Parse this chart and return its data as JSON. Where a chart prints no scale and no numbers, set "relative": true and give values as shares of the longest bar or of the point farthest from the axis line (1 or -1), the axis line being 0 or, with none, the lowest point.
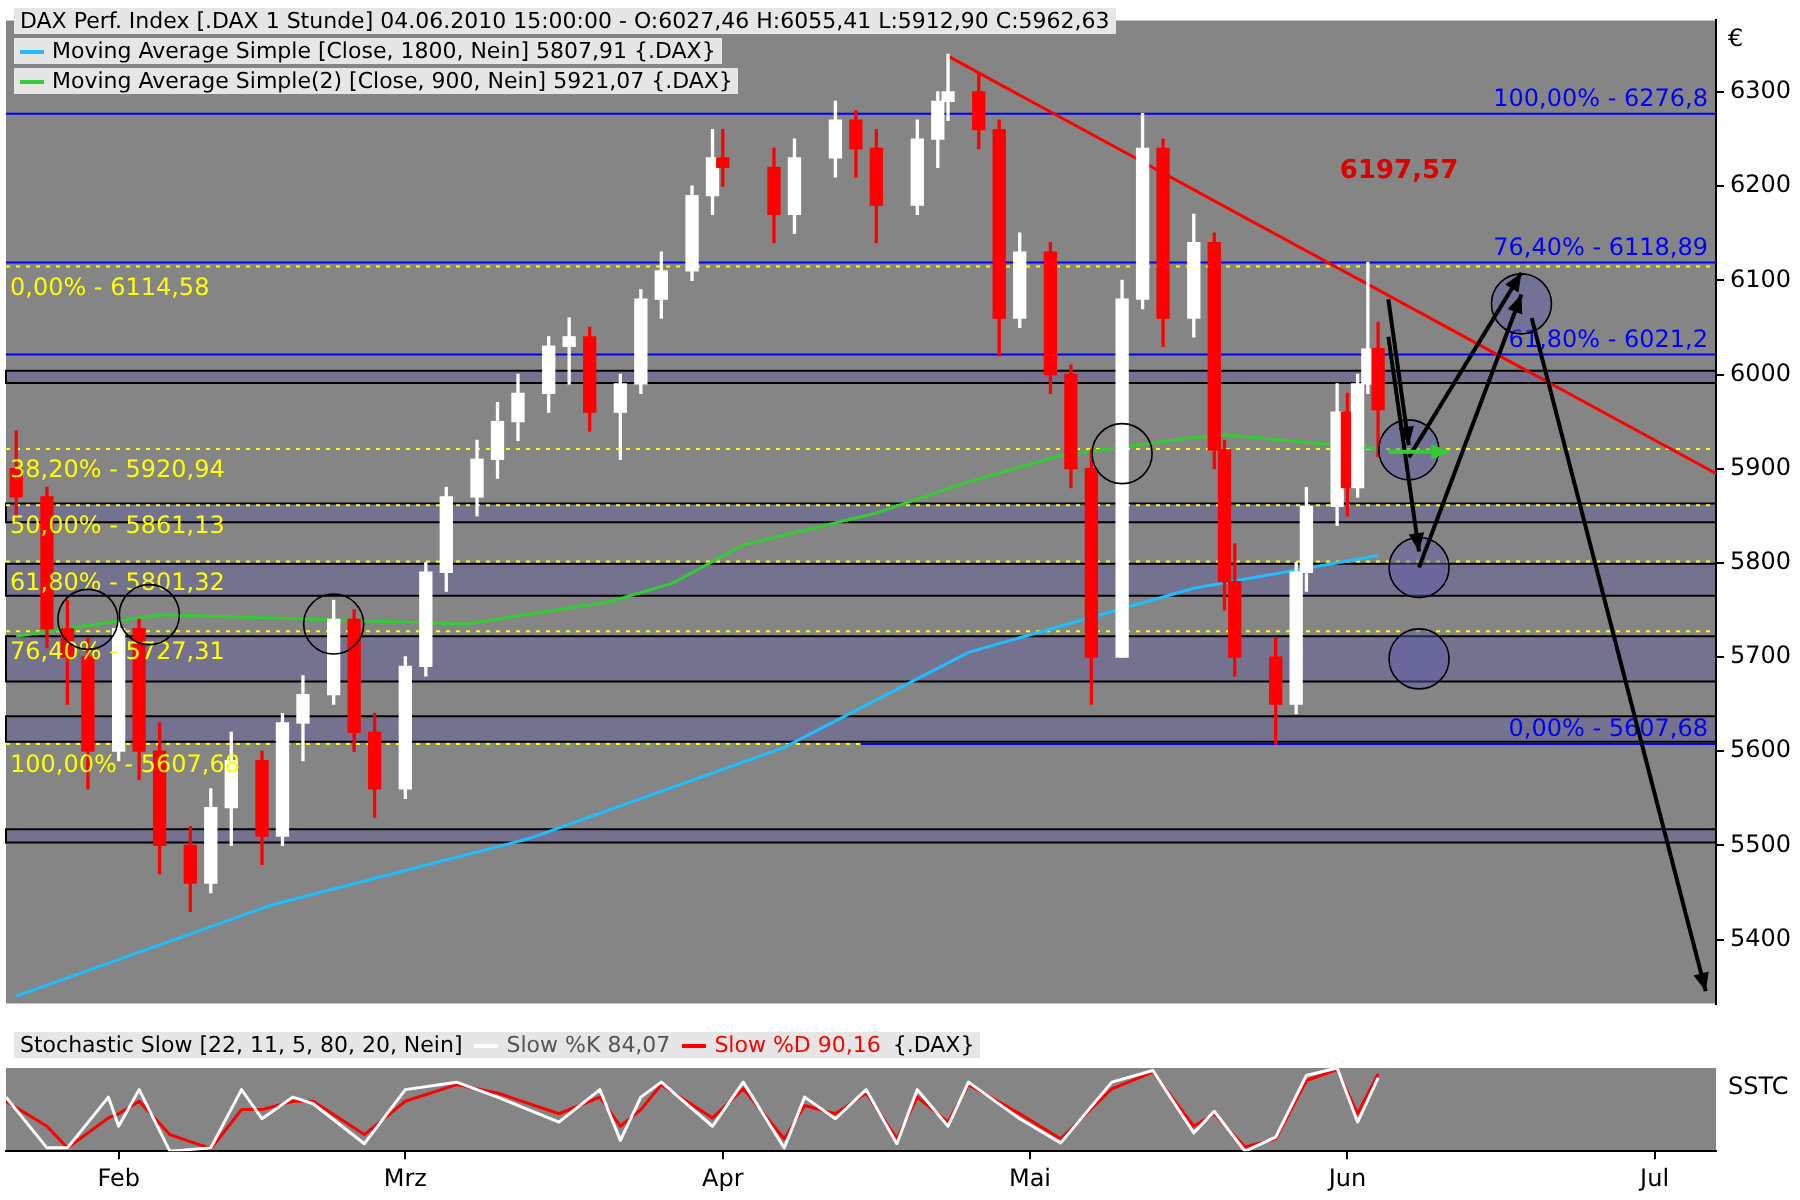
{
  "chart_data": [
    {
      "type": "candlestick",
      "title": "DAX Perf. Index [.DAX  1 Stunde] 04.06.2010 15:00:00 - O:6027,46 H:6055,41 L:5912,90 C:5962,63",
      "ylabel": "€",
      "legend": "top left",
      "grid": false,
      "tick_labels": "y",
      "xlim": [
        "2010-01-21",
        "2010-07-07"
      ],
      "ylim": [
        5332,
        6376
      ],
      "yticks": [
        5400,
        5500,
        5600,
        5700,
        5800,
        5900,
        6000,
        6100,
        6200,
        6300
      ],
      "x": [
        "2010-01-22",
        "2010-01-25",
        "2010-01-27",
        "2010-01-29",
        "2010-02-01",
        "2010-02-03",
        "2010-02-05",
        "2010-02-08",
        "2010-02-10",
        "2010-02-12",
        "2010-02-15",
        "2010-02-17",
        "2010-02-19",
        "2010-02-22",
        "2010-02-24",
        "2010-02-26",
        "2010-03-01",
        "2010-03-03",
        "2010-03-05",
        "2010-03-08",
        "2010-03-10",
        "2010-03-12",
        "2010-03-15",
        "2010-03-17",
        "2010-03-19",
        "2010-03-22",
        "2010-03-24",
        "2010-03-26",
        "2010-03-29",
        "2010-03-31",
        "2010-04-01",
        "2010-04-06",
        "2010-04-08",
        "2010-04-12",
        "2010-04-14",
        "2010-04-16",
        "2010-04-20",
        "2010-04-22",
        "2010-04-23",
        "2010-04-26",
        "2010-04-28",
        "2010-04-30",
        "2010-05-03",
        "2010-05-05",
        "2010-05-07",
        "2010-05-10",
        "2010-05-12",
        "2010-05-14",
        "2010-05-17",
        "2010-05-19",
        "2010-05-20",
        "2010-05-21",
        "2010-05-25",
        "2010-05-27",
        "2010-05-28",
        "2010-05-31",
        "2010-06-01",
        "2010-06-02",
        "2010-06-03",
        "2010-06-04"
      ],
      "ohlc": [
        [
          5900,
          5940,
          5850,
          5870
        ],
        [
          5870,
          5880,
          5710,
          5730
        ],
        [
          5730,
          5760,
          5650,
          5700
        ],
        [
          5700,
          5720,
          5560,
          5600
        ],
        [
          5600,
          5740,
          5590,
          5730
        ],
        [
          5730,
          5740,
          5570,
          5600
        ],
        [
          5600,
          5630,
          5470,
          5500
        ],
        [
          5500,
          5520,
          5430,
          5460
        ],
        [
          5460,
          5560,
          5450,
          5540
        ],
        [
          5540,
          5620,
          5500,
          5590
        ],
        [
          5590,
          5600,
          5480,
          5510
        ],
        [
          5510,
          5640,
          5500,
          5630
        ],
        [
          5630,
          5680,
          5590,
          5660
        ],
        [
          5660,
          5760,
          5650,
          5740
        ],
        [
          5740,
          5750,
          5600,
          5620
        ],
        [
          5620,
          5640,
          5530,
          5560
        ],
        [
          5560,
          5700,
          5550,
          5690
        ],
        [
          5690,
          5800,
          5680,
          5790
        ],
        [
          5790,
          5880,
          5770,
          5870
        ],
        [
          5870,
          5930,
          5850,
          5910
        ],
        [
          5910,
          5970,
          5890,
          5950
        ],
        [
          5950,
          6000,
          5930,
          5980
        ],
        [
          5980,
          6040,
          5960,
          6030
        ],
        [
          6030,
          6060,
          5990,
          6040
        ],
        [
          6040,
          6050,
          5940,
          5960
        ],
        [
          5960,
          6000,
          5910,
          5990
        ],
        [
          5990,
          6090,
          5980,
          6080
        ],
        [
          6080,
          6130,
          6060,
          6110
        ],
        [
          6110,
          6200,
          6100,
          6190
        ],
        [
          6190,
          6260,
          6170,
          6230
        ],
        [
          6230,
          6260,
          6200,
          6220
        ],
        [
          6220,
          6240,
          6140,
          6170
        ],
        [
          6170,
          6250,
          6150,
          6230
        ],
        [
          6230,
          6290,
          6210,
          6270
        ],
        [
          6270,
          6280,
          6210,
          6240
        ],
        [
          6240,
          6260,
          6140,
          6180
        ],
        [
          6180,
          6270,
          6170,
          6250
        ],
        [
          6250,
          6300,
          6220,
          6290
        ],
        [
          6290,
          6340,
          6270,
          6300
        ],
        [
          6300,
          6320,
          6240,
          6260
        ],
        [
          6260,
          6270,
          6020,
          6060
        ],
        [
          6060,
          6150,
          6050,
          6130
        ],
        [
          6130,
          6140,
          5980,
          6000
        ],
        [
          6000,
          6010,
          5880,
          5900
        ],
        [
          5900,
          5920,
          5650,
          5700
        ],
        [
          5700,
          6100,
          5700,
          6080
        ],
        [
          6080,
          6277,
          6070,
          6240
        ],
        [
          6240,
          6250,
          6030,
          6060
        ],
        [
          6060,
          6170,
          6040,
          6140
        ],
        [
          6140,
          6150,
          5900,
          5920
        ],
        [
          5920,
          5930,
          5750,
          5780
        ],
        [
          5780,
          5820,
          5680,
          5700
        ],
        [
          5700,
          5720,
          5608,
          5650
        ],
        [
          5650,
          5800,
          5640,
          5790
        ],
        [
          5790,
          5880,
          5770,
          5860
        ],
        [
          5860,
          5990,
          5840,
          5960
        ],
        [
          5960,
          5980,
          5850,
          5880
        ],
        [
          5880,
          6000,
          5870,
          5990
        ],
        [
          5990,
          6119,
          5980,
          6027
        ],
        [
          6027.46,
          6055.41,
          5912.9,
          5962.63
        ]
      ],
      "colors": [
        "#ff0000",
        "#ff0000",
        "#ff0000",
        "#ff0000",
        "#ffffff",
        "#ff0000",
        "#ff0000",
        "#ff0000",
        "#ffffff",
        "#ffffff",
        "#ff0000",
        "#ffffff",
        "#ffffff",
        "#ffffff",
        "#ff0000",
        "#ff0000",
        "#ffffff",
        "#ffffff",
        "#ffffff",
        "#ffffff",
        "#ffffff",
        "#ffffff",
        "#ffffff",
        "#ffffff",
        "#ff0000",
        "#ffffff",
        "#ffffff",
        "#ffffff",
        "#ffffff",
        "#ffffff",
        "#ff0000",
        "#ff0000",
        "#ffffff",
        "#ffffff",
        "#ff0000",
        "#ff0000",
        "#ffffff",
        "#ffffff",
        "#ffffff",
        "#ff0000",
        "#ff0000",
        "#ffffff",
        "#ff0000",
        "#ff0000",
        "#ff0000",
        "#ffffff",
        "#ffffff",
        "#ff0000",
        "#ffffff",
        "#ff0000",
        "#ff0000",
        "#ff0000",
        "#ff0000",
        "#ffffff",
        "#ffffff",
        "#ffffff",
        "#ff0000",
        "#ffffff",
        "#ffffff",
        "#ff0000"
      ],
      "series": [
        {
          "type": "line",
          "name": "Moving Average Simple [Close, 1800, Nein] 5807,91 {.DAX}",
          "color": "#1ebeff",
          "x": [
            "2010-01-22",
            "2010-02-16",
            "2010-03-13",
            "2010-04-07",
            "2010-04-25",
            "2010-05-17",
            "2010-06-04"
          ],
          "values": [
            5340,
            5437,
            5507,
            5604,
            5705,
            5773,
            5807.91
          ]
        },
        {
          "type": "line",
          "name": "Moving Average Simple(2) [Close, 900, Nein] 5921,07 {.DAX}",
          "color": "#33cc33",
          "x": [
            "2010-01-22",
            "2010-02-05",
            "2010-02-20",
            "2010-03-07",
            "2010-03-21",
            "2010-03-27",
            "2010-04-03",
            "2010-04-16",
            "2010-04-25",
            "2010-05-04",
            "2010-05-17",
            "2010-05-20",
            "2010-06-04"
          ],
          "values": [
            5722,
            5745,
            5740,
            5735,
            5759,
            5778,
            5819,
            5853,
            5886,
            5914,
            5933,
            5936,
            5921.07
          ]
        },
        {
          "type": "line",
          "color": "#ff0000",
          "x": [
            "2010-04-23",
            "2010-07-07"
          ],
          "values": [
            6338,
            5895
          ]
        }
      ],
      "ref_lines": [
        {
          "axis": "y",
          "value": 6114.58,
          "color": "#ffff00",
          "line_style": "dotted"
        },
        {
          "axis": "y",
          "value": 5920.94,
          "color": "#ffff00",
          "line_style": "dotted"
        },
        {
          "axis": "y",
          "value": 5861.13,
          "color": "#ffff00",
          "line_style": "dotted"
        },
        {
          "axis": "y",
          "value": 5801.32,
          "color": "#ffff00",
          "line_style": "dotted"
        },
        {
          "axis": "y",
          "value": 5727.31,
          "color": "#ffff00",
          "line_style": "dotted"
        },
        {
          "axis": "y",
          "value": 5607.68,
          "color": "#ffff00",
          "line_style": "dotted"
        },
        {
          "axis": "y",
          "value": 6276.8,
          "color": "#0000ff",
          "line_style": "solid"
        },
        {
          "axis": "y",
          "value": 6118.89,
          "color": "#0000ff",
          "line_style": "solid"
        },
        {
          "axis": "y",
          "value": 6021.2,
          "color": "#0000ff",
          "line_style": "solid"
        },
        {
          "axis": "y",
          "value": 5607.68,
          "color": "#0000ff",
          "line_style": "solid"
        }
      ],
      "bands": [
        {
          "axis": "y",
          "from": 5991,
          "to": 6004,
          "color": "#75728f"
        },
        {
          "axis": "y",
          "from": 5843,
          "to": 5863,
          "color": "#75728f"
        },
        {
          "axis": "y",
          "from": 5765,
          "to": 5799,
          "color": "#75728f"
        },
        {
          "axis": "y",
          "from": 5674,
          "to": 5722,
          "color": "#75728f"
        },
        {
          "axis": "y",
          "from": 5610,
          "to": 5637,
          "color": "#75728f"
        },
        {
          "axis": "y",
          "from": 5503,
          "to": 5517,
          "color": "#75728f"
        }
      ],
      "annotations": [
        "6197,57",
        {
          "text": "0,00% - 6114,58",
          "y": 6114.58
        },
        {
          "text": "38,20% - 5920,94",
          "y": 5920.94
        },
        {
          "text": "50,00% - 5861,13",
          "y": 5861.13
        },
        {
          "text": "61,80% - 5801,32",
          "y": 5801.32
        },
        {
          "text": "76,40% - 5727,31",
          "y": 5727.31
        },
        {
          "text": "100,00% - 5607,68",
          "y": 5607.68
        },
        {
          "text": "100,00% - 6276,8",
          "y": 6276.8
        },
        {
          "text": "76,40% - 6118,89",
          "y": 6118.89
        },
        {
          "text": "61,80% - 6021,2",
          "y": 6021.2
        },
        {
          "text": "0,00% - 5607,68",
          "y": 5607.68
        }
      ]
    },
    {
      "type": "line",
      "title": "Stochastic Slow [22, 11, 5, 80, 20, Nein]",
      "ylabel": "SSTC",
      "relative": true,
      "legend": "top left",
      "grid": false,
      "tick_labels": "x",
      "xlim": [
        "2010-01-21",
        "2010-07-07"
      ],
      "xticks": [
        {
          "value": "2010-02-01",
          "label": "Feb"
        },
        {
          "value": "2010-03-01",
          "label": "Mrz"
        },
        {
          "value": "2010-04-01",
          "label": "Apr"
        },
        {
          "value": "2010-05-01",
          "label": "Mai"
        },
        {
          "value": "2010-06-01",
          "label": "Jun"
        },
        {
          "value": "2010-07-01",
          "label": "Jul"
        }
      ],
      "x": [
        "2010-01-21",
        "2010-01-25",
        "2010-01-27",
        "2010-01-31",
        "2010-02-01",
        "2010-02-03",
        "2010-02-06",
        "2010-02-10",
        "2010-02-13",
        "2010-02-15",
        "2010-02-18",
        "2010-02-20",
        "2010-02-25",
        "2010-03-01",
        "2010-03-06",
        "2010-03-10",
        "2010-03-16",
        "2010-03-20",
        "2010-03-22",
        "2010-03-24",
        "2010-03-26",
        "2010-03-31",
        "2010-04-03",
        "2010-04-07",
        "2010-04-09",
        "2010-04-12",
        "2010-04-15",
        "2010-04-18",
        "2010-04-20",
        "2010-04-23",
        "2010-04-25",
        "2010-04-30",
        "2010-05-04",
        "2010-05-09",
        "2010-05-13",
        "2010-05-17",
        "2010-05-19",
        "2010-05-22",
        "2010-05-25",
        "2010-05-28",
        "2010-05-31",
        "2010-06-02",
        "2010-06-04"
      ],
      "series": [
        {
          "name": "Slow %K 84,07",
          "color": "#ffffff",
          "values": [
            0.65,
            0.04,
            0.04,
            0.65,
            0.3,
            0.74,
            0,
            0.04,
            0.74,
            0.39,
            0.65,
            0.57,
            0.09,
            0.74,
            0.83,
            0.65,
            0.35,
            0.74,
            0.13,
            0.65,
            0.83,
            0.3,
            0.83,
            0.04,
            0.65,
            0.39,
            0.74,
            0.09,
            0.74,
            0.3,
            0.83,
            0.39,
            0.1,
            0.83,
            0.97,
            0.22,
            0.48,
            0,
            0.17,
            0.91,
            1,
            0.35,
            0.88
          ]
        },
        {
          "name": "Slow %D 90,16",
          "color": "#ff0000",
          "values": [
            0.6,
            0.3,
            0.04,
            0.4,
            0.45,
            0.6,
            0.2,
            0.03,
            0.5,
            0.5,
            0.6,
            0.6,
            0.2,
            0.6,
            0.8,
            0.7,
            0.45,
            0.65,
            0.3,
            0.5,
            0.8,
            0.4,
            0.75,
            0.15,
            0.55,
            0.45,
            0.7,
            0.15,
            0.65,
            0.35,
            0.8,
            0.45,
            0.15,
            0.75,
            0.95,
            0.3,
            0.45,
            0.05,
            0.15,
            0.85,
            0.98,
            0.45,
            0.93
          ]
        }
      ],
      "annotations": [
        "{.DAX}"
      ]
    }
  ]
}
